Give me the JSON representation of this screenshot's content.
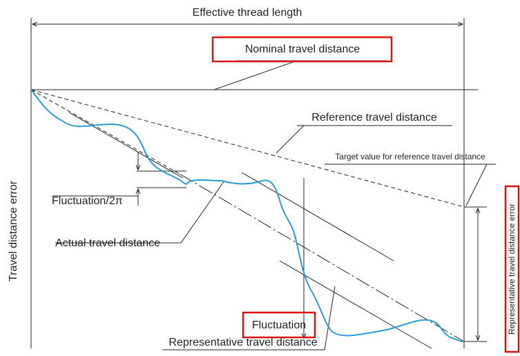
{
  "title": "Effective thread length",
  "labels": {
    "nominal": "Nominal travel distance",
    "reference": "Reference travel distance",
    "target": "Target value for reference travel distance",
    "fluctuation_2pi": "Fluctuation/2π",
    "actual": "Actual travel distance",
    "fluctuation": "Fluctuation",
    "representative": "Representative travel distance",
    "representative_error": "Representative travel distance error",
    "y_axis": "Travel distance error"
  }
}
